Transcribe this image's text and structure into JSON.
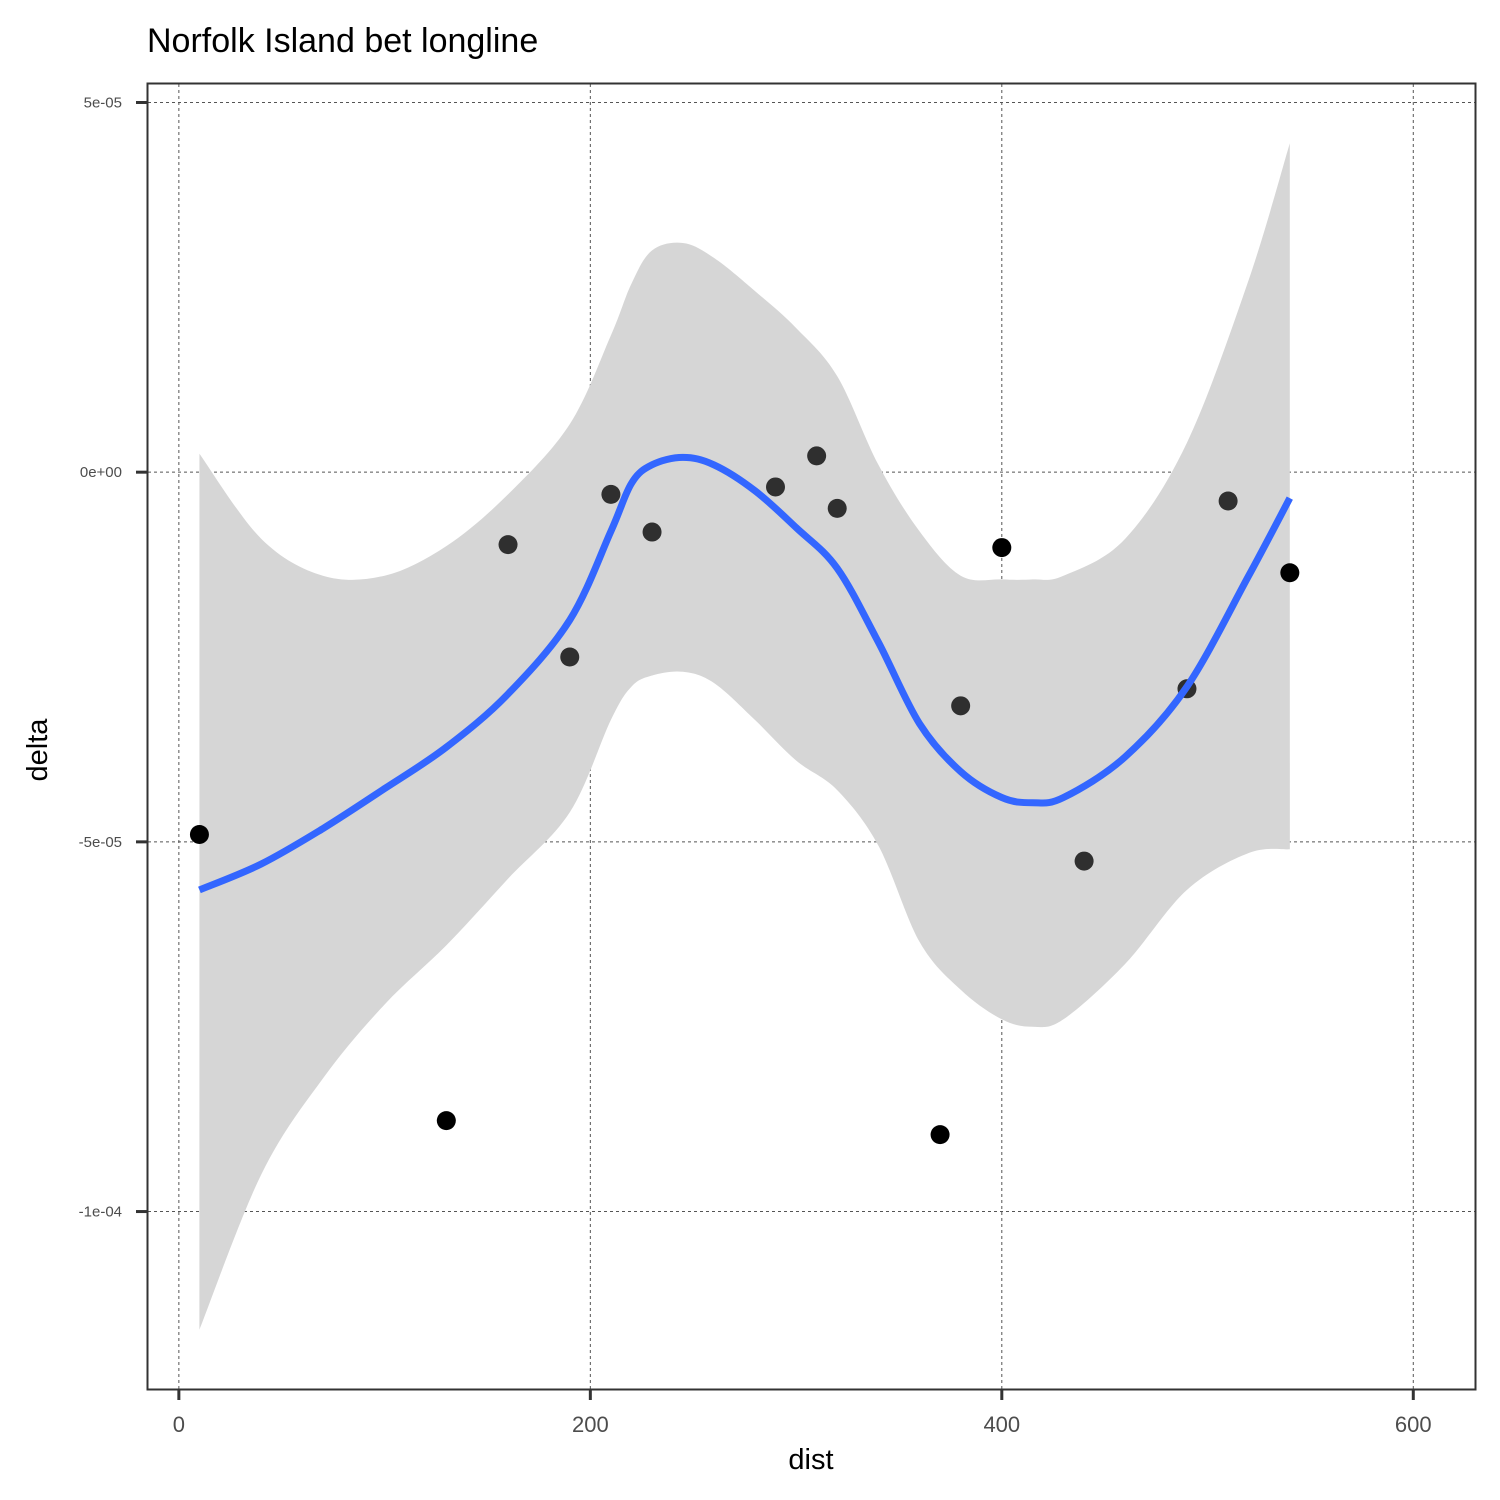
{
  "chart_data": {
    "type": "scatter",
    "title": "Norfolk Island bet longline",
    "xlabel": "dist",
    "ylabel": "delta",
    "xlim": [
      -15,
      630
    ],
    "ylim": [
      -0.000124,
      5.25e-05
    ],
    "x_ticks": [
      0,
      200,
      400,
      600
    ],
    "x_tick_labels": [
      "0",
      "200",
      "400",
      "600"
    ],
    "y_ticks": [
      5e-05,
      0,
      -5e-05,
      -0.0001
    ],
    "y_tick_labels": [
      "5e-05",
      "0e+00",
      "-5e-05",
      "-1e-04"
    ],
    "grid": true,
    "legend": "none",
    "colors": {
      "points": "#000000",
      "smooth_line": "#3366ff",
      "confidence_band": "#d6d6d6",
      "grid": "#555555",
      "axis": "#333333"
    },
    "points": [
      {
        "x": 10,
        "y": -4.9e-05,
        "alpha": 1.0
      },
      {
        "x": 130,
        "y": -8.77e-05,
        "alpha": 1.0
      },
      {
        "x": 160,
        "y": -9.8e-06,
        "alpha": 0.78
      },
      {
        "x": 190,
        "y": -2.5e-05,
        "alpha": 0.78
      },
      {
        "x": 210,
        "y": -3e-06,
        "alpha": 0.78
      },
      {
        "x": 230,
        "y": -8.1e-06,
        "alpha": 0.78
      },
      {
        "x": 290,
        "y": -2e-06,
        "alpha": 0.78
      },
      {
        "x": 310,
        "y": 2.2e-06,
        "alpha": 0.78
      },
      {
        "x": 320,
        "y": -4.9e-06,
        "alpha": 0.78
      },
      {
        "x": 370,
        "y": -8.96e-05,
        "alpha": 1.0
      },
      {
        "x": 380,
        "y": -3.16e-05,
        "alpha": 0.78
      },
      {
        "x": 400,
        "y": -1.02e-05,
        "alpha": 1.0
      },
      {
        "x": 440,
        "y": -5.26e-05,
        "alpha": 0.78
      },
      {
        "x": 490,
        "y": -2.93e-05,
        "alpha": 0.78
      },
      {
        "x": 510,
        "y": -3.9e-06,
        "alpha": 0.78
      },
      {
        "x": 540,
        "y": -1.36e-05,
        "alpha": 1.0
      }
    ],
    "smooth": {
      "method": "loess",
      "x": [
        10,
        40,
        70,
        100,
        130,
        160,
        190,
        210,
        220,
        230,
        245,
        260,
        280,
        300,
        320,
        340,
        360,
        380,
        400,
        415,
        430,
        460,
        490,
        520,
        540
      ],
      "y": [
        -5.65e-05,
        -5.3e-05,
        -4.82e-05,
        -4.28e-05,
        -3.72e-05,
        -3e-05,
        -2e-05,
        -8e-06,
        -1.5e-06,
        1e-06,
        2e-06,
        1e-06,
        -2.5e-06,
        -7.5e-06,
        -1.3e-05,
        -2.3e-05,
        -3.4e-05,
        -4.05e-05,
        -4.4e-05,
        -4.47e-05,
        -4.4e-05,
        -3.85e-05,
        -2.9e-05,
        -1.4e-05,
        -3.5e-06
      ],
      "upper": [
        2.5e-06,
        -9e-06,
        -1.4e-05,
        -1.4e-05,
        -1e-05,
        -3e-06,
        6.5e-06,
        1.85e-05,
        2.55e-05,
        3e-05,
        3.1e-05,
        2.9e-05,
        2.45e-05,
        1.95e-05,
        1.3e-05,
        1e-06,
        -8e-06,
        -1.4e-05,
        -1.45e-05,
        -1.45e-05,
        -1.4e-05,
        -9e-06,
        4e-06,
        2.6e-05,
        4.45e-05
      ],
      "lower": [
        -0.000116,
        -9.5e-05,
        -8.2e-05,
        -7.2e-05,
        -6.4e-05,
        -5.5e-05,
        -4.6e-05,
        -3.35e-05,
        -2.9e-05,
        -2.75e-05,
        -2.7e-05,
        -2.85e-05,
        -3.35e-05,
        -3.9e-05,
        -4.3e-05,
        -5.05e-05,
        -6.35e-05,
        -7e-05,
        -7.4e-05,
        -7.5e-05,
        -7.4e-05,
        -6.65e-05,
        -5.65e-05,
        -5.15e-05,
        -5.1e-05
      ]
    }
  }
}
